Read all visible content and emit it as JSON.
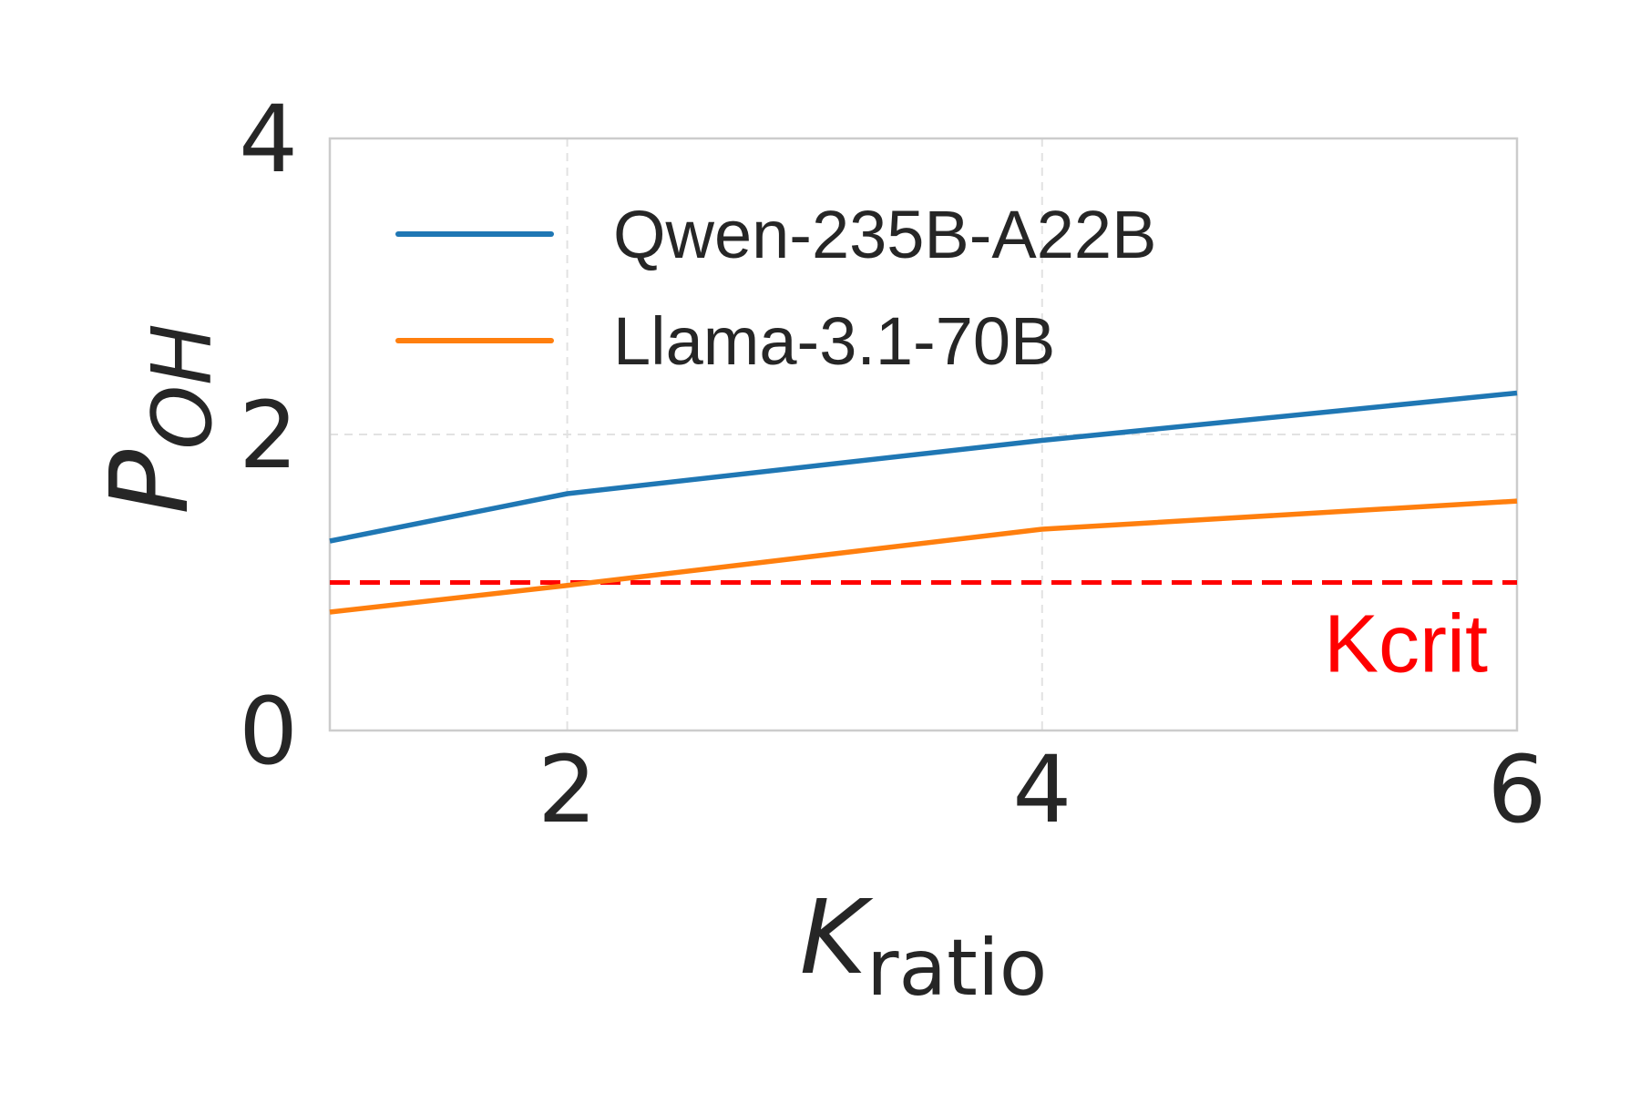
{
  "chart_data": {
    "type": "line",
    "xlabel": {
      "main": "K",
      "sub": "ratio"
    },
    "ylabel": {
      "main": "P",
      "sub": "OH"
    },
    "xlim": [
      1,
      6
    ],
    "ylim": [
      0,
      4
    ],
    "x_ticks": [
      2,
      4,
      6
    ],
    "y_ticks": [
      0,
      2,
      4
    ],
    "grid": true,
    "legend_position": "top-left",
    "series": [
      {
        "name": "Qwen-235B-A22B",
        "color": "#1f77b4",
        "x": [
          1,
          2,
          4,
          6
        ],
        "y": [
          1.28,
          1.6,
          1.96,
          2.28
        ]
      },
      {
        "name": "Llama-3.1-70B",
        "color": "#ff7f0e",
        "x": [
          1,
          2,
          4,
          6
        ],
        "y": [
          0.8,
          0.98,
          1.36,
          1.55
        ]
      }
    ],
    "reference_line": {
      "label": "Kcrit",
      "y": 1.0,
      "color": "#ff0000",
      "style": "dashed"
    }
  }
}
